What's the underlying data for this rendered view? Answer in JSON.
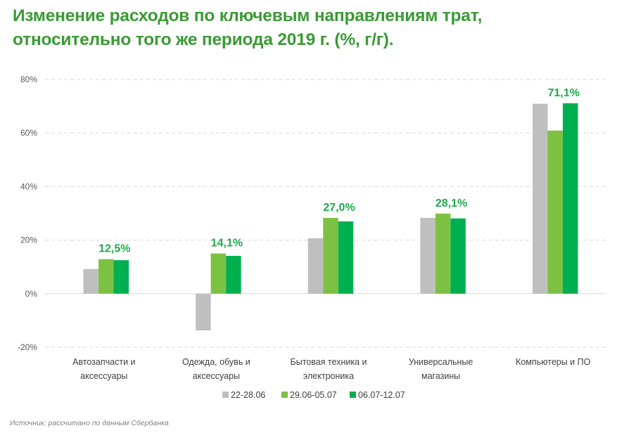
{
  "title_line1": "Изменение расходов по ключевым направлениям трат,",
  "title_line2": "относительно того же периода 2019 г.  (%, г/г).",
  "source": "Источник: рассчитано по данным Сбербанка",
  "colors": {
    "title": "#3a9a35",
    "gray": "#bfbfbf",
    "light_green": "#7dc142",
    "dark_green": "#00b050",
    "label": "#1fab4c"
  },
  "chart_data": {
    "type": "bar",
    "title": "Изменение расходов по ключевым направлениям трат, относительно того же периода 2019 г.  (%, г/г).",
    "xlabel": "",
    "ylabel": "",
    "ylim": [
      -20,
      80
    ],
    "yticks": [
      80,
      60,
      40,
      20,
      0,
      -20
    ],
    "ytick_labels": [
      "80%",
      "60%",
      "40%",
      "20%",
      "0%",
      "-20%"
    ],
    "grid": true,
    "legend_position": "bottom",
    "categories": [
      [
        "Автозапчасти и",
        "аксессуары"
      ],
      [
        "Одежда, обувь и",
        "аксессуары"
      ],
      [
        "Бытовая техника и",
        "электроника"
      ],
      [
        "Универсальные",
        "магазины"
      ],
      [
        "Компьютеры и ПО"
      ]
    ],
    "series": [
      {
        "name": "22-28.06",
        "color": "#bfbfbf",
        "values": [
          9.2,
          -13.7,
          20.7,
          28.3,
          70.9
        ]
      },
      {
        "name": "29.06-05.07",
        "color": "#7dc142",
        "values": [
          12.9,
          15.0,
          28.3,
          29.9,
          60.9
        ]
      },
      {
        "name": "06.07-12.07",
        "color": "#00b050",
        "values": [
          12.5,
          14.1,
          27.0,
          28.1,
          71.1
        ]
      }
    ],
    "data_labels": [
      "12,5%",
      "14,1%",
      "27,0%",
      "28,1%",
      "71,1%"
    ]
  }
}
